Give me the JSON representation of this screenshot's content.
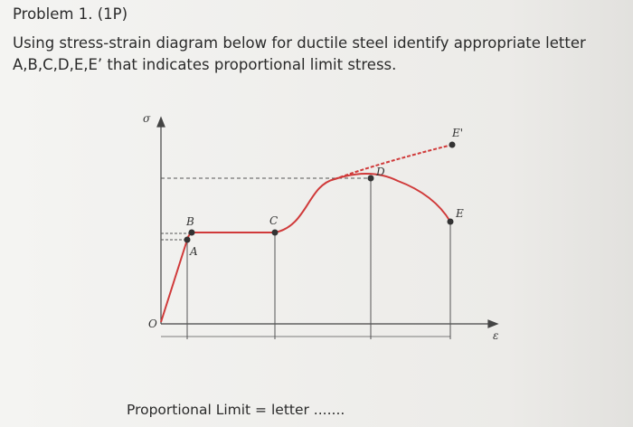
{
  "header": {
    "title": "Problem 1. (1P)",
    "lines": [
      "Using stress-strain diagram below for ductile steel identify appropriate letter",
      "A,B,C,D,E,E’ that indicates proportional limit stress."
    ]
  },
  "diagram": {
    "y_axis": "σ",
    "x_axis": "ε",
    "origin": "O",
    "points": [
      "A",
      "B",
      "C",
      "D",
      "E",
      "E'"
    ]
  },
  "footer": {
    "text": "Proportional Limit = letter ......."
  }
}
